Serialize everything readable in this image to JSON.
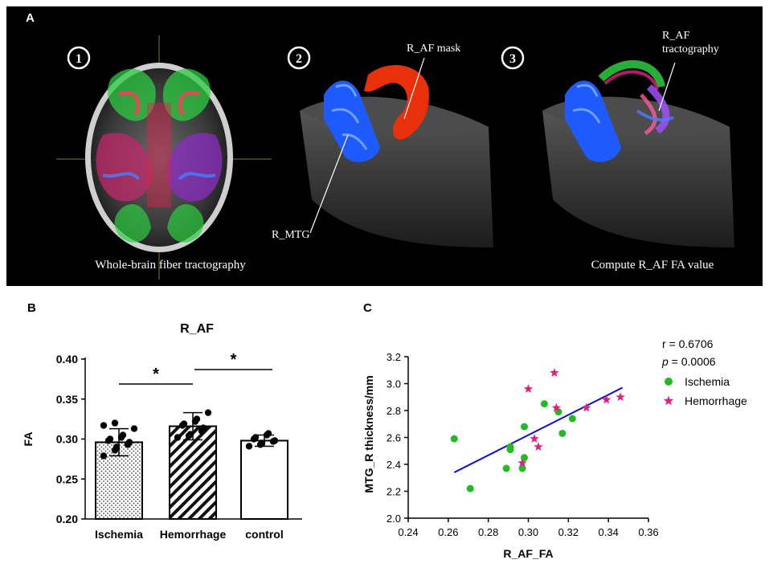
{
  "panels": {
    "a": "A",
    "b": "B",
    "c": "C"
  },
  "panel_a": {
    "steps": [
      "1",
      "2",
      "3"
    ],
    "caption_left": "Whole-brain fiber tractography",
    "caption_right": "Compute R_AF FA value",
    "label_mask": "R_AF mask",
    "label_mtg": "R_MTG",
    "label_tract_1": "R_AF",
    "label_tract_2": "tractography",
    "colors": {
      "mtg": "#1e5bff",
      "mask": "#e8300a"
    }
  },
  "chart_data": [
    {
      "id": "B",
      "type": "bar",
      "title": "R_AF",
      "ylabel": "FA",
      "xlabel": "",
      "ylim": [
        0.2,
        0.4
      ],
      "yticks": [
        0.2,
        0.25,
        0.3,
        0.35,
        0.4
      ],
      "categories": [
        "Ischemia",
        "Hemorrhage",
        "control"
      ],
      "values": [
        0.296,
        0.316,
        0.298
      ],
      "error": [
        0.017,
        0.017,
        0.007
      ],
      "patterns": [
        "dots",
        "hatch",
        "none"
      ],
      "points": [
        [
          0.279,
          0.286,
          0.29,
          0.293,
          0.296,
          0.298,
          0.3,
          0.302,
          0.305,
          0.313,
          0.317,
          0.32
        ],
        [
          0.302,
          0.304,
          0.306,
          0.31,
          0.314,
          0.317,
          0.319,
          0.322,
          0.325,
          0.333
        ],
        [
          0.291,
          0.293,
          0.295,
          0.297,
          0.298,
          0.3,
          0.302,
          0.305,
          0.307
        ]
      ],
      "significance": [
        {
          "from": 0,
          "to": 1,
          "label": "*"
        },
        {
          "from": 1,
          "to": 2,
          "label": "*"
        }
      ]
    },
    {
      "id": "C",
      "type": "scatter",
      "xlabel": "R_AF_FA",
      "ylabel": "MTG_R thickness/mm",
      "xlim": [
        0.24,
        0.36
      ],
      "ylim": [
        2.0,
        3.2
      ],
      "xticks": [
        0.24,
        0.26,
        0.28,
        0.3,
        0.32,
        0.34,
        0.36
      ],
      "yticks": [
        2.0,
        2.2,
        2.4,
        2.6,
        2.8,
        3.0,
        3.2
      ],
      "stats": {
        "r_text": "r = 0.6706",
        "p_symbol": "p",
        "p_rest": " = 0.0006"
      },
      "series": [
        {
          "name": "Ischemia",
          "marker": "circle",
          "color": "#22bb22",
          "x": [
            0.263,
            0.271,
            0.289,
            0.291,
            0.291,
            0.297,
            0.298,
            0.298,
            0.308,
            0.315,
            0.317,
            0.322
          ],
          "y": [
            2.59,
            2.22,
            2.37,
            2.53,
            2.51,
            2.37,
            2.45,
            2.68,
            2.85,
            2.79,
            2.63,
            2.74
          ]
        },
        {
          "name": "Hemorrhage",
          "marker": "star",
          "color": "#e0207a",
          "x": [
            0.297,
            0.3,
            0.303,
            0.305,
            0.313,
            0.314,
            0.329,
            0.339,
            0.346
          ],
          "y": [
            2.41,
            2.96,
            2.59,
            2.53,
            3.08,
            2.82,
            2.82,
            2.88,
            2.9
          ]
        }
      ],
      "regression": {
        "x": [
          0.263,
          0.347
        ],
        "y": [
          2.34,
          2.97
        ],
        "color": "#1010d0"
      }
    }
  ]
}
